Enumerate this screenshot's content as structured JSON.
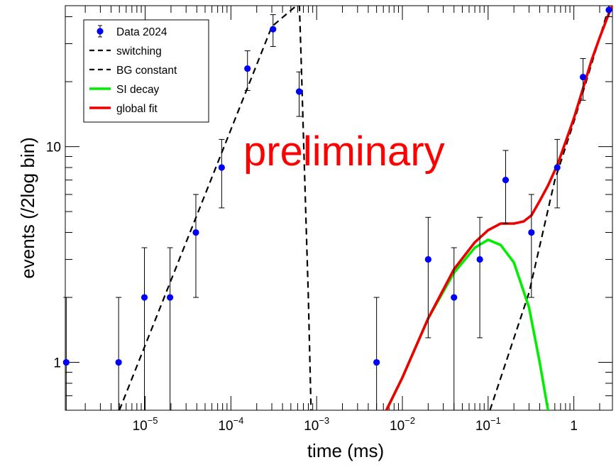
{
  "chart_data": {
    "type": "scatter",
    "xlabel": "time (ms)",
    "ylabel": "events (/2log bin)",
    "x_scale": "log",
    "y_scale": "log",
    "xlim": [
      1.17e-06,
      2.82
    ],
    "ylim": [
      0.6,
      45
    ],
    "x_ticks": [
      {
        "value": 1e-05,
        "base": "10",
        "exp": "−5"
      },
      {
        "value": 0.0001,
        "base": "10",
        "exp": "−4"
      },
      {
        "value": 0.001,
        "base": "10",
        "exp": "−3"
      },
      {
        "value": 0.01,
        "base": "10",
        "exp": "−2"
      },
      {
        "value": 0.1,
        "base": "10",
        "exp": "−1"
      },
      {
        "value": 1,
        "base": "1",
        "exp": ""
      }
    ],
    "y_ticks": [
      {
        "value": 1,
        "label": "1"
      },
      {
        "value": 10,
        "label": "10"
      }
    ],
    "watermark": "preliminary",
    "legend": {
      "placement": "top-left",
      "entries": [
        {
          "label": "Data 2024",
          "style": "marker",
          "color": "#0000ff"
        },
        {
          "label": "switching",
          "style": "dashed",
          "color": "#000000"
        },
        {
          "label": "BG constant",
          "style": "dashed",
          "color": "#000000"
        },
        {
          "label": "SI decay",
          "style": "line",
          "color": "#00ee00"
        },
        {
          "label": "global fit",
          "style": "line",
          "color": "#ee0000"
        }
      ]
    },
    "data_points": [
      {
        "x": 1.2e-06,
        "y": 1,
        "err": [
          1,
          1
        ]
      },
      {
        "x": 4.9e-06,
        "y": 1,
        "err": [
          1,
          1
        ]
      },
      {
        "x": 9.8e-06,
        "y": 2,
        "err": [
          2,
          1.4
        ]
      },
      {
        "x": 1.95e-05,
        "y": 2,
        "err": [
          2,
          1.4
        ]
      },
      {
        "x": 3.9e-05,
        "y": 4,
        "err": [
          2,
          2
        ]
      },
      {
        "x": 7.8e-05,
        "y": 8,
        "err": [
          2.8,
          2.8
        ]
      },
      {
        "x": 0.000156,
        "y": 23,
        "err": [
          4.8,
          4.8
        ]
      },
      {
        "x": 0.00031,
        "y": 35,
        "err": [
          5.9,
          5.9
        ]
      },
      {
        "x": 0.000625,
        "y": 18,
        "err": [
          4.2,
          4.2
        ]
      },
      {
        "x": 0.005,
        "y": 1,
        "err": [
          1,
          1
        ]
      },
      {
        "x": 0.02,
        "y": 3,
        "err": [
          1.7,
          1.7
        ]
      },
      {
        "x": 0.04,
        "y": 2,
        "err": [
          2,
          1.4
        ]
      },
      {
        "x": 0.08,
        "y": 3,
        "err": [
          1.7,
          1.7
        ]
      },
      {
        "x": 0.16,
        "y": 7,
        "err": [
          2.6,
          2.6
        ]
      },
      {
        "x": 0.32,
        "y": 4,
        "err": [
          2,
          2
        ]
      },
      {
        "x": 0.64,
        "y": 8,
        "err": [
          2.8,
          2.8
        ]
      },
      {
        "x": 1.28,
        "y": 21,
        "err": [
          4.6,
          4.6
        ]
      },
      {
        "x": 2.56,
        "y": 43,
        "err": [
          3,
          3
        ]
      }
    ],
    "curves": [
      {
        "name": "switching",
        "style": "dashed",
        "color": "#000000",
        "points": [
          [
            5e-06,
            0.6
          ],
          [
            2e-05,
            2.4
          ],
          [
            0.0001,
            12
          ],
          [
            0.0003,
            36
          ],
          [
            0.00058,
            45
          ],
          [
            0.00063,
            45
          ],
          [
            0.00066,
            25
          ],
          [
            0.00072,
            8
          ],
          [
            0.0008,
            2
          ],
          [
            0.00086,
            0.6
          ]
        ]
      },
      {
        "name": "BG constant",
        "style": "dashed",
        "color": "#000000",
        "points": [
          [
            0.105,
            0.6
          ],
          [
            0.3,
            2.1
          ],
          [
            0.6,
            7
          ],
          [
            1.0,
            13
          ],
          [
            2.6,
            45
          ]
        ]
      },
      {
        "name": "SI decay",
        "style": "line",
        "color": "#00ee00",
        "points": [
          [
            0.0065,
            0.6
          ],
          [
            0.01,
            0.85
          ],
          [
            0.02,
            1.6
          ],
          [
            0.04,
            2.6
          ],
          [
            0.07,
            3.4
          ],
          [
            0.1,
            3.7
          ],
          [
            0.14,
            3.5
          ],
          [
            0.2,
            2.9
          ],
          [
            0.3,
            1.8
          ],
          [
            0.4,
            1.0
          ],
          [
            0.5,
            0.6
          ]
        ]
      },
      {
        "name": "global fit",
        "style": "line",
        "color": "#ee0000",
        "points": [
          [
            0.0065,
            0.6
          ],
          [
            0.01,
            0.85
          ],
          [
            0.02,
            1.6
          ],
          [
            0.04,
            2.7
          ],
          [
            0.07,
            3.6
          ],
          [
            0.1,
            4.1
          ],
          [
            0.14,
            4.4
          ],
          [
            0.2,
            4.4
          ],
          [
            0.26,
            4.5
          ],
          [
            0.32,
            4.8
          ],
          [
            0.4,
            5.6
          ],
          [
            0.5,
            6.6
          ],
          [
            0.64,
            8.2
          ],
          [
            0.8,
            10.5
          ],
          [
            1.0,
            13.5
          ],
          [
            1.3,
            19
          ],
          [
            1.6,
            25
          ],
          [
            2.0,
            32
          ],
          [
            2.6,
            42
          ],
          [
            2.82,
            45
          ]
        ]
      }
    ]
  }
}
